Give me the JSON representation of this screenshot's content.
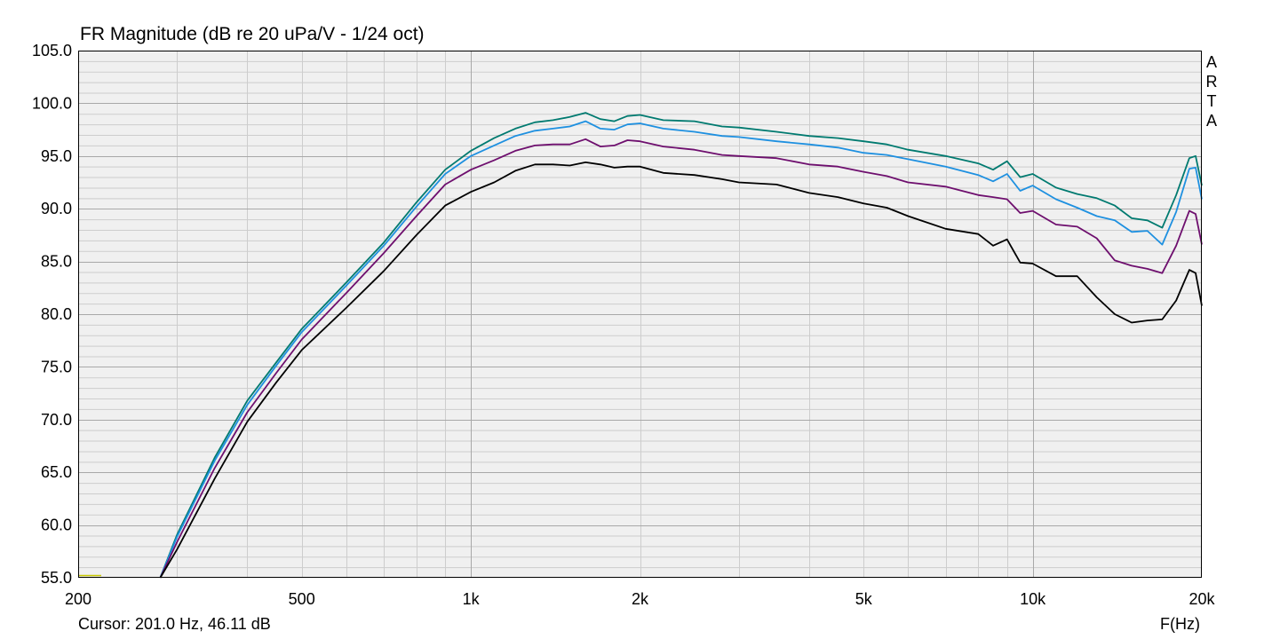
{
  "chart_data": {
    "type": "line",
    "title": "FR Magnitude (dB re 20 uPa/V - 1/24 oct)",
    "xlabel": "F(Hz)",
    "ylabel": "",
    "xscale": "log",
    "xlim": [
      200,
      20000
    ],
    "ylim": [
      55,
      105
    ],
    "grid": true,
    "x_tick_values": [
      200,
      500,
      1000,
      2000,
      5000,
      10000,
      20000
    ],
    "x_tick_labels": [
      "200",
      "500",
      "1k",
      "2k",
      "5k",
      "10k",
      "20k"
    ],
    "y_tick_values": [
      105,
      100,
      95,
      90,
      85,
      80,
      75,
      70,
      65,
      60,
      55
    ],
    "y_tick_labels": [
      "105.0",
      "100.0",
      "95.0",
      "90.0",
      "85.0",
      "80.0",
      "75.0",
      "70.0",
      "65.0",
      "60.0",
      "55.0"
    ],
    "x": [
      280,
      300,
      350,
      400,
      450,
      500,
      600,
      700,
      800,
      900,
      1000,
      1100,
      1200,
      1300,
      1400,
      1500,
      1600,
      1700,
      1800,
      1900,
      2000,
      2200,
      2500,
      2800,
      3000,
      3500,
      4000,
      4500,
      5000,
      5500,
      6000,
      7000,
      8000,
      8500,
      9000,
      9500,
      10000,
      11000,
      12000,
      13000,
      14000,
      15000,
      16000,
      17000,
      18000,
      19000,
      19500,
      20000
    ],
    "series": [
      {
        "color": "#007a70",
        "values": [
          55.0,
          59.1,
          66.4,
          71.8,
          75.4,
          78.6,
          83.0,
          86.8,
          90.6,
          93.7,
          95.5,
          96.7,
          97.6,
          98.2,
          98.4,
          98.7,
          99.1,
          98.5,
          98.3,
          98.8,
          98.9,
          98.4,
          98.3,
          97.8,
          97.7,
          97.3,
          96.9,
          96.7,
          96.4,
          96.1,
          95.6,
          95.0,
          94.3,
          93.7,
          94.5,
          93.0,
          93.3,
          92.0,
          91.4,
          91.0,
          90.3,
          89.1,
          88.9,
          88.2,
          91.3,
          94.8,
          95.0,
          92.2
        ]
      },
      {
        "color": "#1e90e0",
        "values": [
          55.0,
          58.9,
          66.1,
          71.4,
          75.1,
          78.3,
          82.7,
          86.5,
          90.2,
          93.3,
          95.0,
          96.0,
          96.9,
          97.4,
          97.6,
          97.8,
          98.3,
          97.6,
          97.5,
          98.0,
          98.1,
          97.6,
          97.3,
          96.9,
          96.8,
          96.4,
          96.1,
          95.8,
          95.3,
          95.1,
          94.7,
          94.0,
          93.2,
          92.6,
          93.3,
          91.7,
          92.2,
          90.9,
          90.1,
          89.3,
          88.9,
          87.8,
          87.9,
          86.6,
          89.7,
          93.8,
          93.9,
          90.9
        ]
      },
      {
        "color": "#6e0f6e",
        "values": [
          55.0,
          58.4,
          65.4,
          70.7,
          74.4,
          77.6,
          82.0,
          85.8,
          89.3,
          92.3,
          93.7,
          94.6,
          95.5,
          96.0,
          96.1,
          96.1,
          96.6,
          95.9,
          96.0,
          96.5,
          96.4,
          95.9,
          95.6,
          95.1,
          95.0,
          94.8,
          94.2,
          94.0,
          93.5,
          93.1,
          92.5,
          92.1,
          91.3,
          91.1,
          90.9,
          89.6,
          89.8,
          88.5,
          88.3,
          87.2,
          85.1,
          84.6,
          84.3,
          83.9,
          86.5,
          89.8,
          89.5,
          86.6
        ]
      },
      {
        "color": "#000000",
        "values": [
          55.0,
          57.7,
          64.4,
          69.8,
          73.5,
          76.6,
          80.6,
          84.1,
          87.5,
          90.3,
          91.6,
          92.5,
          93.6,
          94.2,
          94.2,
          94.1,
          94.4,
          94.2,
          93.9,
          94.0,
          94.0,
          93.4,
          93.2,
          92.8,
          92.5,
          92.3,
          91.5,
          91.1,
          90.5,
          90.1,
          89.3,
          88.1,
          87.6,
          86.5,
          87.1,
          84.9,
          84.8,
          83.6,
          83.6,
          81.6,
          80.0,
          79.2,
          79.4,
          79.5,
          81.3,
          84.2,
          83.9,
          80.8
        ]
      }
    ]
  },
  "cursor": {
    "text": "Cursor: 201.0 Hz, 46.11 dB"
  },
  "brand": {
    "letters": [
      "A",
      "R",
      "T",
      "A"
    ]
  },
  "colors": {
    "plot_background": "#f0f0f0",
    "grid_major": "#a8a8a8",
    "grid_minor": "#cdcdcd",
    "axis": "#000000",
    "cursor_marker": "#c8c800"
  }
}
